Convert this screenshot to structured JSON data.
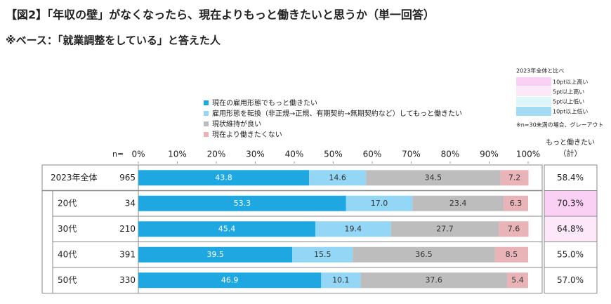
{
  "chart_data": {
    "type": "stacked-bar",
    "title": "【図2】「年収の壁」がなくなったら、現在よりもっと働きたいと思うか（単一回答）",
    "subtitle": "※ベース：「就業調整をしている」と答えた人",
    "categories": [
      "2023年全体",
      "20代",
      "30代",
      "40代",
      "50代"
    ],
    "n_label": "n=",
    "n": [
      965,
      34,
      210,
      391,
      330
    ],
    "series": [
      {
        "name": "現在の雇用形態でもっと働きたい",
        "color": "#1ea7e1",
        "values": [
          43.8,
          53.3,
          45.4,
          39.5,
          46.9
        ],
        "value_labels": [
          "43.8",
          "53.3",
          "45.4",
          "39.5",
          "46.9"
        ]
      },
      {
        "name": "雇用形態を転換（非正規→正規、有期契約→無期契約など）してもっと働きたい",
        "color": "#93d6f5",
        "values": [
          14.6,
          17.0,
          19.4,
          15.5,
          10.1
        ],
        "value_labels": [
          "14.6",
          "17.0",
          "19.4",
          "15.5",
          "10.1"
        ]
      },
      {
        "name": "現状維持が良い",
        "color": "#bdbdbd",
        "values": [
          34.5,
          23.4,
          27.7,
          36.5,
          37.6
        ],
        "value_labels": [
          "34.5",
          "23.4",
          "27.7",
          "36.5",
          "37.6"
        ]
      },
      {
        "name": "現在より働きたくない",
        "color": "#e8b4b8",
        "values": [
          7.2,
          6.3,
          7.6,
          8.5,
          5.4
        ],
        "value_labels": [
          "7.2",
          "6.3",
          "7.6",
          "8.5",
          "5.4"
        ]
      }
    ],
    "xlim": [
      0,
      100
    ],
    "xticks": [
      {
        "value": 0,
        "label": "0%"
      },
      {
        "value": 10,
        "label": "10%"
      },
      {
        "value": 20,
        "label": "20%"
      },
      {
        "value": 30,
        "label": "30%"
      },
      {
        "value": 40,
        "label": "40%"
      },
      {
        "value": 50,
        "label": "50%"
      },
      {
        "value": 60,
        "label": "60%"
      },
      {
        "value": 70,
        "label": "70%"
      },
      {
        "value": 80,
        "label": "80%"
      },
      {
        "value": 90,
        "label": "90%"
      },
      {
        "value": 100,
        "label": "100%"
      }
    ],
    "total": {
      "header": [
        "もっと働きたい",
        "（計）"
      ],
      "values": [
        58.4,
        70.3,
        64.8,
        55.0,
        57.0
      ],
      "value_labels": [
        "58.4%",
        "70.3%",
        "64.8%",
        "55.0%",
        "57.0%"
      ],
      "highlight": [
        null,
        0,
        1,
        null,
        null
      ]
    },
    "comparison_legend": {
      "title": "2023年全体と比べ",
      "items": [
        {
          "name": "10pt以上高い",
          "color": "#fbd0f5"
        },
        {
          "name": "5pt以上高い",
          "color": "#fde8f9"
        },
        {
          "name": "5pt以上低い",
          "color": "#ddf6fa"
        },
        {
          "name": "10pt以上低い",
          "color": "#a3daf4"
        }
      ],
      "note": "※n=30未満の場合、グレーアウト"
    }
  }
}
